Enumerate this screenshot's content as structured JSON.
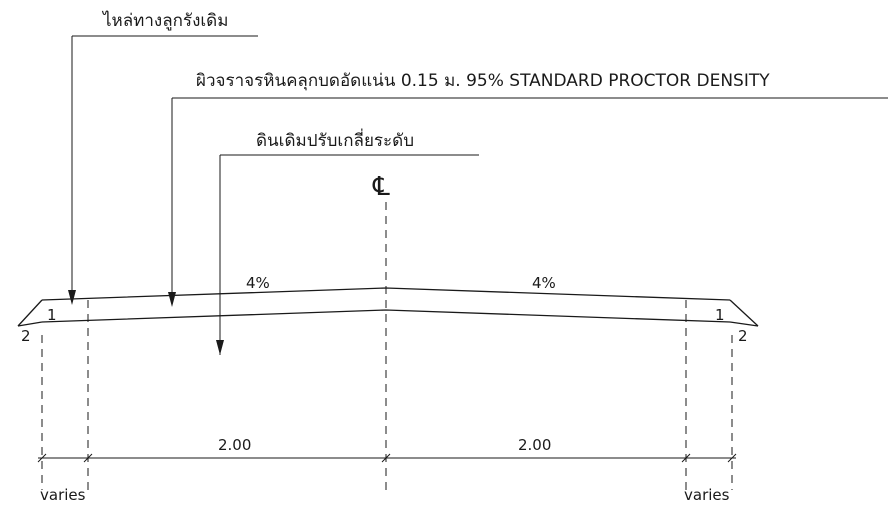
{
  "labels": {
    "shoulder": "ไหล่ทางลูกรังเดิม",
    "surface": "ผิวจราจรหินคลุกบดอัดแน่น 0.15 ม. 95% STANDARD PROCTOR DENSITY",
    "subgrade": "ดินเดิมปรับเกลี่ยระดับ",
    "centerline": "℄"
  },
  "slopes": {
    "left_crossfall": "4%",
    "right_crossfall": "4%",
    "left_side_v": "1",
    "left_side_h": "2",
    "right_side_v": "1",
    "right_side_h": "2"
  },
  "dimensions": {
    "left_width": "2.00",
    "right_width": "2.00",
    "left_shoulder": "varies",
    "right_shoulder": "varies"
  }
}
